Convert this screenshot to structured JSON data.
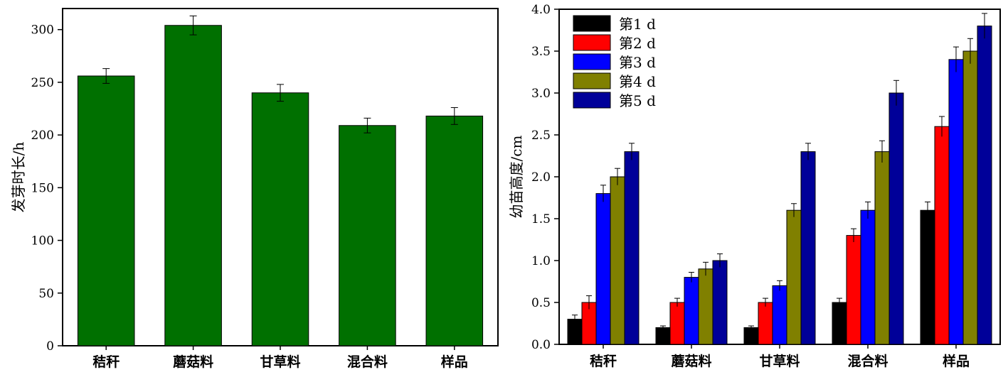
{
  "chart_data": [
    {
      "type": "bar",
      "categories": [
        "秸秆",
        "蘑菇料",
        "甘草料",
        "混合料",
        "样品"
      ],
      "values": [
        256,
        304,
        240,
        209,
        218
      ],
      "errors": [
        7,
        9,
        8,
        7,
        8
      ],
      "xlabel": "",
      "ylabel": "发芽时长/h",
      "ylim": [
        0,
        320
      ],
      "yticks": [
        0,
        50,
        100,
        150,
        200,
        250,
        300
      ],
      "bar_color": "#007000",
      "grid": false
    },
    {
      "type": "bar",
      "categories": [
        "秸秆",
        "蘑菇料",
        "甘草料",
        "混合料",
        "样品"
      ],
      "series": [
        {
          "name": "第1 d",
          "color": "#000000",
          "values": [
            0.3,
            0.2,
            0.2,
            0.5,
            1.6
          ],
          "errors": [
            0.05,
            0.02,
            0.02,
            0.05,
            0.1
          ]
        },
        {
          "name": "第2 d",
          "color": "#ff0000",
          "values": [
            0.5,
            0.5,
            0.5,
            1.3,
            2.6
          ],
          "errors": [
            0.08,
            0.05,
            0.05,
            0.08,
            0.12
          ]
        },
        {
          "name": "第3 d",
          "color": "#0000ff",
          "values": [
            1.8,
            0.8,
            0.7,
            1.6,
            3.4
          ],
          "errors": [
            0.1,
            0.06,
            0.06,
            0.1,
            0.15
          ]
        },
        {
          "name": "第4 d",
          "color": "#808000",
          "values": [
            2.0,
            0.9,
            1.6,
            2.3,
            3.5
          ],
          "errors": [
            0.1,
            0.08,
            0.08,
            0.13,
            0.15
          ]
        },
        {
          "name": "第5 d",
          "color": "#000099",
          "values": [
            2.3,
            1.0,
            2.3,
            3.0,
            3.8
          ],
          "errors": [
            0.1,
            0.08,
            0.1,
            0.15,
            0.15
          ]
        }
      ],
      "xlabel": "",
      "ylabel": "幼苗高度/cm",
      "ylim": [
        0,
        4.0
      ],
      "yticks": [
        "0.0",
        "0.5",
        "1.0",
        "1.5",
        "2.0",
        "2.5",
        "3.0",
        "3.5",
        "4.0"
      ],
      "legend": "top-left",
      "grid": false
    }
  ]
}
